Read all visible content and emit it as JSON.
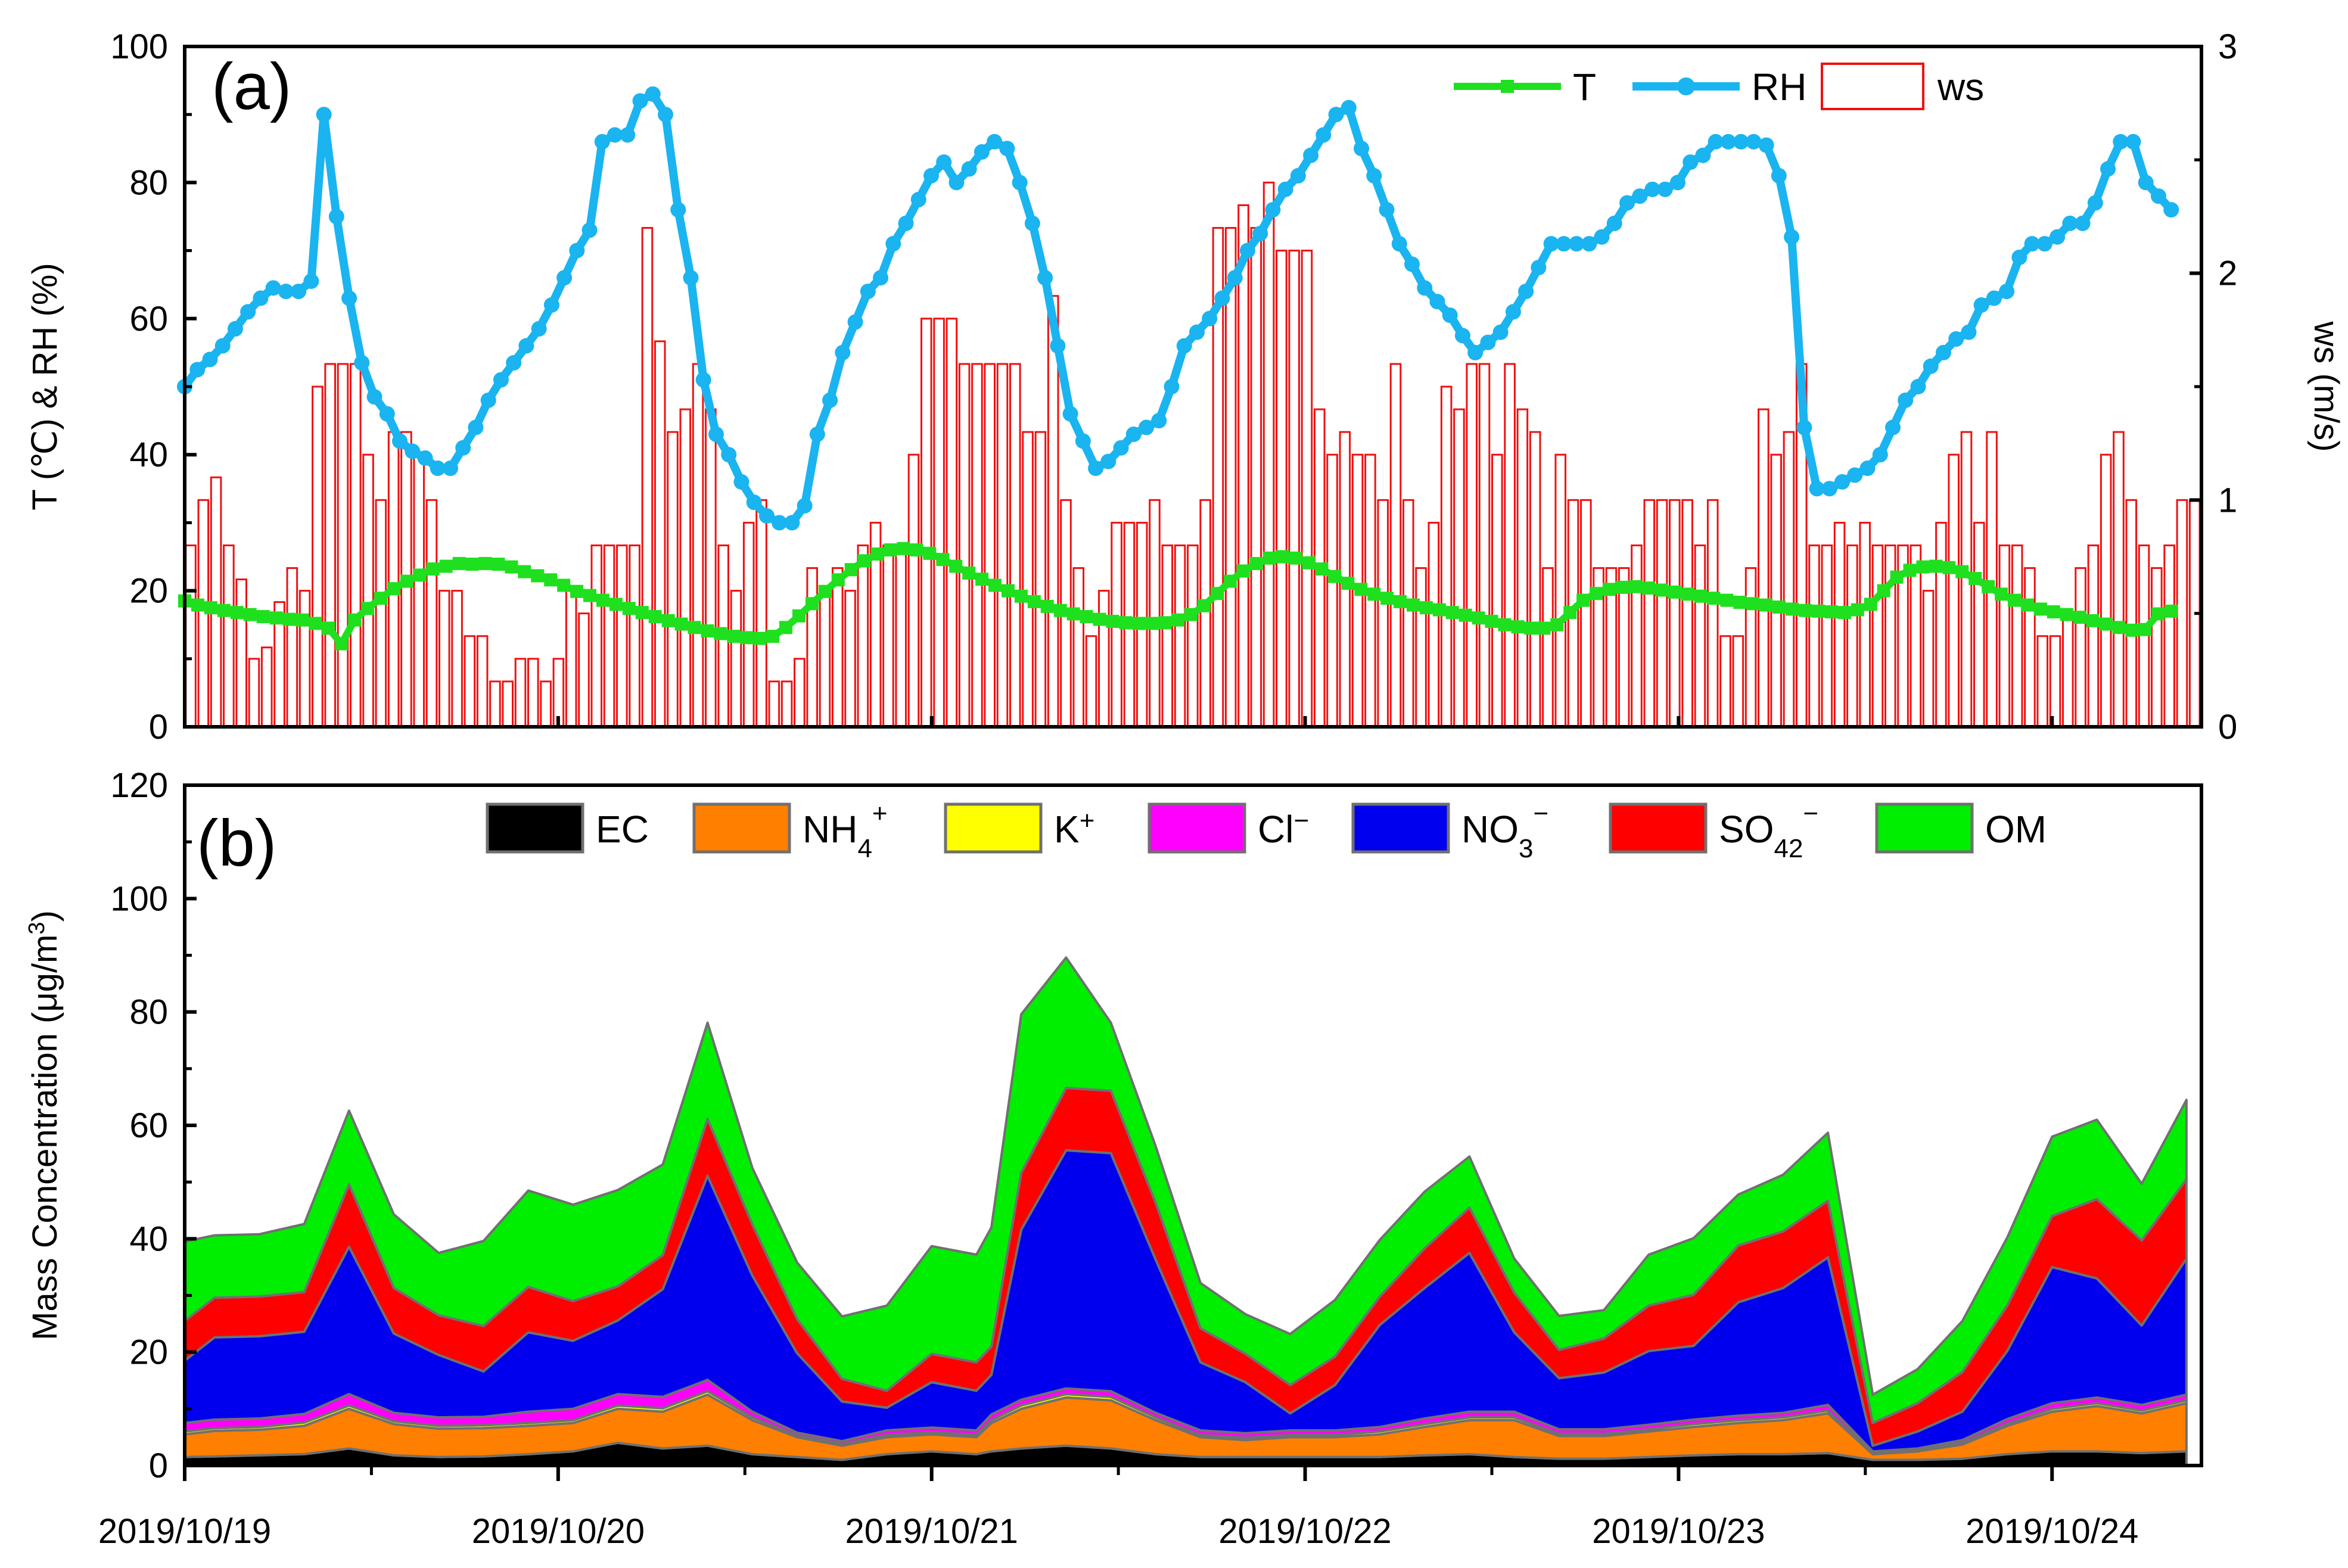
{
  "colors": {
    "T": "#1ee01e",
    "RH": "#1ab4f0",
    "ws": "#ee1111",
    "EC": "#000000",
    "NH4": "#ff7f00",
    "K": "#ffff00",
    "Cl": "#ff00ff",
    "NO3": "#0000ee",
    "SO4": "#ff0000",
    "OM": "#00ee00",
    "outline": "#707070"
  },
  "chart_data": [
    {
      "panel": "a",
      "type": "line",
      "panel_label": "(a)",
      "xlabel": "",
      "ylabel": "T (℃) & RH (%)",
      "y2label": "ws (m/s)",
      "ylim": [
        0,
        100
      ],
      "y2lim": [
        0,
        3
      ],
      "xlim": [
        0,
        135
      ],
      "yticks": [
        "0",
        "20",
        "40",
        "60",
        "80",
        "100"
      ],
      "y2ticks": [
        "0",
        "1",
        "2",
        "3"
      ],
      "legend": [
        "T",
        "RH",
        "ws"
      ],
      "legend_position": "top-right",
      "series": [
        {
          "name": "T",
          "kind": "line",
          "axis": "left",
          "x_start": 0,
          "x_step": 1,
          "values": [
            18.5,
            17.9,
            17.5,
            17.1,
            16.8,
            16.5,
            16.2,
            16.0,
            15.8,
            15.7,
            15.2,
            14.5,
            12.2,
            15.7,
            17.4,
            18.9,
            20.3,
            21.4,
            22.3,
            23.2,
            23.6,
            24.0,
            23.9,
            24.0,
            23.9,
            23.5,
            22.8,
            22.2,
            21.6,
            20.8,
            19.9,
            19.3,
            18.6,
            18.0,
            17.4,
            16.8,
            16.2,
            15.6,
            15.1,
            14.6,
            14.1,
            13.7,
            13.3,
            13.1,
            13.0,
            13.3,
            14.6,
            16.3,
            18.1,
            19.9,
            21.6,
            23.1,
            24.4,
            25.4,
            26.0,
            26.2,
            26.0,
            25.5,
            24.6,
            23.6,
            22.6,
            21.7,
            20.8,
            20.0,
            19.2,
            18.4,
            17.7,
            17.1,
            16.6,
            16.2,
            15.8,
            15.5,
            15.3,
            15.2,
            15.2,
            15.3,
            15.7,
            16.5,
            17.8,
            19.6,
            21.4,
            22.9,
            24.0,
            24.8,
            25.0,
            24.8,
            24.1,
            23.2,
            22.1,
            21.1,
            20.2,
            19.5,
            18.9,
            18.4,
            17.9,
            17.5,
            17.2,
            16.8,
            16.4,
            16.0,
            15.5,
            15.0,
            14.7,
            14.5,
            14.5,
            15.0,
            16.8,
            18.6,
            19.6,
            20.2,
            20.5,
            20.6,
            20.4,
            20.1,
            19.8,
            19.5,
            19.2,
            18.9,
            18.6,
            18.3,
            18.1,
            17.9,
            17.6,
            17.3,
            17.1,
            17.0,
            16.9,
            16.8,
            17.2,
            18.0,
            20.0,
            22.0,
            23.0,
            23.5,
            23.6,
            23.4,
            22.8,
            21.8,
            20.6,
            19.5,
            18.6,
            17.9,
            17.3,
            16.9,
            16.5,
            16.1,
            15.6,
            15.1,
            14.6,
            14.2,
            14.3,
            16.6,
            17.0
          ]
        },
        {
          "name": "RH",
          "kind": "line",
          "axis": "left",
          "x_start": 0,
          "x_step": 1,
          "values": [
            50,
            52.5,
            54,
            56,
            58.5,
            61,
            63,
            64.5,
            64,
            64,
            65.5,
            90,
            75,
            63,
            53.5,
            48.5,
            46,
            42,
            40.5,
            39.5,
            38,
            38,
            41,
            44,
            48,
            51,
            53.5,
            56,
            58.5,
            62,
            66,
            70,
            73,
            86,
            87,
            87,
            92,
            93,
            90,
            76,
            66,
            51,
            43,
            40,
            36,
            33,
            31,
            30,
            30,
            32.5,
            43,
            48,
            55,
            59.5,
            64,
            66,
            71,
            74,
            77.5,
            81,
            83,
            80,
            82,
            84.5,
            86,
            85,
            80,
            74,
            66,
            56,
            46,
            42,
            38,
            39,
            41,
            43,
            44,
            45,
            50,
            56,
            58,
            60,
            63,
            66,
            70,
            72.5,
            76,
            79,
            81,
            84,
            87,
            90,
            91,
            85,
            81,
            76,
            71,
            68,
            64.5,
            62.5,
            60.5,
            57.5,
            55,
            56.5,
            58,
            61,
            64,
            67.5,
            71,
            71,
            71,
            71,
            72,
            74,
            77,
            78,
            79,
            79,
            80,
            83,
            84,
            86,
            86,
            86,
            86,
            85.5,
            81,
            72,
            44,
            35,
            35,
            36,
            37,
            38,
            40,
            44,
            48,
            50,
            53,
            55,
            57,
            58,
            62,
            63,
            64,
            69,
            71,
            71,
            72,
            74,
            74,
            77,
            82,
            86,
            86,
            80,
            78,
            76
          ]
        },
        {
          "name": "ws",
          "kind": "bar",
          "axis": "right",
          "x_start": 0,
          "x_step": 1,
          "values": [
            0.8,
            1.0,
            1.1,
            0.8,
            0.65,
            0.3,
            0.35,
            0.55,
            0.7,
            0.6,
            1.5,
            1.6,
            1.6,
            1.6,
            1.2,
            1.0,
            1.3,
            1.3,
            1.2,
            1.0,
            0.6,
            0.6,
            0.4,
            0.4,
            0.2,
            0.2,
            0.3,
            0.3,
            0.2,
            0.3,
            0.6,
            0.5,
            0.8,
            0.8,
            0.8,
            0.8,
            2.2,
            1.7,
            1.3,
            1.4,
            1.6,
            1.4,
            0.8,
            0.6,
            0.9,
            1.0,
            0.2,
            0.2,
            0.3,
            0.7,
            0.6,
            0.7,
            0.6,
            0.8,
            0.9,
            0.8,
            0.8,
            1.2,
            1.8,
            1.8,
            1.8,
            1.6,
            1.6,
            1.6,
            1.6,
            1.6,
            1.3,
            1.3,
            1.9,
            1.0,
            0.7,
            0.4,
            0.6,
            0.9,
            0.9,
            0.9,
            1.0,
            0.8,
            0.8,
            0.8,
            1.0,
            2.2,
            2.2,
            2.3,
            2.2,
            2.4,
            2.1,
            2.1,
            2.1,
            1.4,
            1.2,
            1.3,
            1.2,
            1.2,
            1.0,
            1.6,
            1.0,
            0.7,
            0.9,
            1.5,
            1.4,
            1.6,
            1.6,
            1.2,
            1.6,
            1.4,
            1.3,
            0.7,
            1.2,
            1.0,
            1.0,
            0.7,
            0.7,
            0.7,
            0.8,
            1.0,
            1.0,
            1.0,
            1.0,
            0.8,
            1.0,
            0.4,
            0.4,
            0.7,
            1.4,
            1.2,
            1.3,
            1.6,
            0.8,
            0.8,
            0.9,
            0.8,
            0.9,
            0.8,
            0.8,
            0.8,
            0.8,
            0.6,
            0.9,
            1.2,
            1.3,
            0.9,
            1.3,
            0.8,
            0.8,
            0.7,
            0.4,
            0.4,
            0.5,
            0.7,
            0.8,
            1.2,
            1.3,
            1.0,
            0.8,
            0.7,
            0.8,
            1.0,
            1.0
          ]
        }
      ]
    },
    {
      "panel": "b",
      "type": "area",
      "stacked": true,
      "panel_label": "(b)",
      "xlabel": "",
      "ylabel": "Mass Concentration (μg/m³)",
      "ylim": [
        0,
        120
      ],
      "xlim": [
        0,
        135
      ],
      "yticks": [
        "0",
        "20",
        "40",
        "60",
        "80",
        "100",
        "120"
      ],
      "xticks": [
        0,
        25,
        50,
        75,
        100,
        125
      ],
      "categories": [
        "2019/10/19",
        "2019/10/20",
        "2019/10/21",
        "2019/10/22",
        "2019/10/23",
        "2019/10/24"
      ],
      "legend_position": "top",
      "x": [
        0,
        2,
        5,
        8,
        11,
        14,
        17,
        20,
        23,
        26,
        29,
        32,
        35,
        38,
        41,
        44,
        47,
        50,
        53,
        54,
        56,
        59,
        62,
        65,
        68,
        71,
        74,
        77,
        80,
        83,
        86,
        89,
        92,
        95,
        98,
        101,
        104,
        107,
        110,
        113,
        116,
        119,
        122,
        125,
        128,
        131,
        134
      ],
      "series": [
        {
          "name": "EC",
          "legend_label": "EC",
          "values": [
            1.5,
            1.6,
            1.8,
            2.0,
            3.0,
            1.8,
            1.5,
            1.6,
            2.0,
            2.5,
            4.0,
            3.0,
            3.5,
            2.0,
            1.5,
            1.0,
            2.0,
            2.5,
            2.0,
            2.5,
            3.0,
            3.5,
            3.0,
            2.0,
            1.5,
            1.5,
            1.5,
            1.5,
            1.5,
            1.8,
            2.0,
            1.5,
            1.2,
            1.2,
            1.5,
            1.8,
            2.0,
            2.0,
            2.2,
            1.0,
            1.0,
            1.2,
            2.0,
            2.5,
            2.5,
            2.2,
            2.5
          ]
        },
        {
          "name": "NH4+",
          "legend_label": "NH4+",
          "values": [
            4,
            4.5,
            4.5,
            5.0,
            7.0,
            5.5,
            5.0,
            5.0,
            5.0,
            5.0,
            6.0,
            6.5,
            9.0,
            6.0,
            3.5,
            2.5,
            3.0,
            3.0,
            3.0,
            5.0,
            7.0,
            8.5,
            8.5,
            6.0,
            3.5,
            3.0,
            3.5,
            3.5,
            4.0,
            5.0,
            6.0,
            6.5,
            4.0,
            4.0,
            4.5,
            5.0,
            5.5,
            6.0,
            7.0,
            1.0,
            1.5,
            2.5,
            5.0,
            7.0,
            8.0,
            7.0,
            8.5
          ]
        },
        {
          "name": "K+",
          "legend_label": "K+",
          "values": [
            0.5,
            0.5,
            0.5,
            0.6,
            0.6,
            0.5,
            0.5,
            0.5,
            0.5,
            0.5,
            0.6,
            0.6,
            0.6,
            0.5,
            0.3,
            0.3,
            0.4,
            0.4,
            0.4,
            0.5,
            0.6,
            0.6,
            0.6,
            0.5,
            0.4,
            0.4,
            0.4,
            0.4,
            0.5,
            0.5,
            0.5,
            0.5,
            0.4,
            0.4,
            0.4,
            0.5,
            0.5,
            0.5,
            0.5,
            0.2,
            0.2,
            0.3,
            0.4,
            0.5,
            0.5,
            0.5,
            0.5
          ]
        },
        {
          "name": "Cl-",
          "legend_label": "Cl−",
          "values": [
            1.5,
            1.5,
            1.5,
            1.5,
            2.0,
            1.5,
            1.5,
            1.5,
            2.0,
            2.0,
            2.0,
            2.0,
            2.0,
            1.0,
            0.5,
            0.5,
            0.8,
            0.8,
            0.8,
            1.0,
            1.0,
            1.0,
            1.0,
            0.8,
            0.8,
            0.8,
            0.8,
            0.8,
            0.8,
            1.0,
            1.0,
            1.0,
            0.8,
            0.8,
            0.8,
            0.8,
            0.8,
            0.8,
            1.0,
            0.3,
            0.3,
            0.5,
            0.8,
            1.0,
            1.0,
            1.0,
            1.0
          ]
        },
        {
          "name": "NO3-",
          "legend_label": "NO3−",
          "values": [
            11,
            14.5,
            14.5,
            14.5,
            26,
            14,
            11,
            8,
            14,
            12,
            13,
            19,
            36,
            24,
            14,
            7,
            4,
            8,
            7,
            7,
            30,
            42,
            42,
            27,
            12,
            9,
            3,
            8,
            18,
            23,
            28,
            14,
            9,
            10,
            13,
            13,
            20,
            22,
            26,
            1,
            3,
            5,
            12,
            24,
            21,
            14,
            24
          ]
        },
        {
          "name": "SO42-",
          "legend_label": "SO42−",
          "values": [
            7,
            7,
            7,
            7,
            11,
            8,
            7,
            8,
            8,
            7,
            6,
            6,
            10,
            9,
            6,
            4,
            3,
            5,
            5,
            5,
            10,
            11,
            11,
            10,
            6,
            5,
            5,
            5,
            5,
            7,
            8,
            7,
            5,
            6,
            8,
            9,
            10,
            10,
            10,
            4,
            5,
            7,
            8,
            9,
            14,
            15,
            14
          ]
        },
        {
          "name": "OM",
          "legend_label": "OM",
          "values": [
            14,
            11,
            11,
            12,
            13,
            13,
            11,
            15,
            17,
            17,
            17,
            16,
            17,
            10,
            10,
            11,
            15,
            19,
            19,
            21,
            28,
            23,
            12,
            10,
            8,
            7,
            9,
            10,
            10,
            10,
            9,
            6,
            6,
            5,
            9,
            10,
            9,
            10,
            12,
            5,
            6,
            9,
            12,
            14,
            14,
            10,
            14
          ]
        }
      ]
    }
  ]
}
